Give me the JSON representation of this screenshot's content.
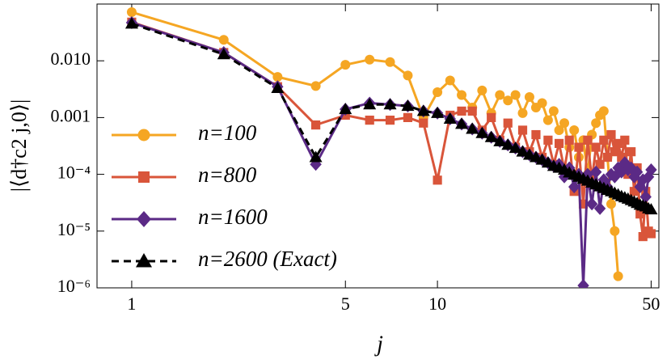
{
  "chart_data": {
    "type": "line",
    "x_label": "j",
    "y_label": "|⟨d†c2 j,0⟩|",
    "xscale": "log",
    "yscale": "log",
    "xlim": [
      0.77,
      53
    ],
    "ylim": [
      1e-06,
      0.1
    ],
    "xticks": [
      1,
      5,
      10,
      50
    ],
    "yticks": [
      {
        "value": 1e-06,
        "label": "10⁻⁶"
      },
      {
        "value": 1e-05,
        "label": "10⁻⁵"
      },
      {
        "value": 0.0001,
        "label": "10⁻⁴"
      },
      0.001,
      {
        "value": 0.01,
        "label": "0.010"
      }
    ],
    "legend": "left",
    "x": [
      1,
      2,
      3,
      4,
      5,
      6,
      7,
      8,
      9,
      10,
      11,
      12,
      13,
      14,
      15,
      16,
      17,
      18,
      19,
      20,
      21,
      22,
      23,
      24,
      25,
      26,
      27,
      28,
      29,
      30,
      31,
      32,
      33,
      34,
      35,
      36,
      37,
      38,
      39,
      40,
      41,
      42,
      43,
      44,
      45,
      46,
      47,
      48,
      49,
      50
    ],
    "series": [
      {
        "name": "n=100",
        "color": "#f5a623",
        "marker": "circle",
        "dash": false,
        "values": [
          0.072,
          0.0234,
          0.0052,
          0.0036,
          0.0085,
          0.0105,
          0.0095,
          0.0055,
          0.001,
          0.0028,
          0.0045,
          0.0025,
          0.0015,
          0.003,
          0.0012,
          0.0025,
          0.002,
          0.0025,
          0.0012,
          0.0023,
          0.0015,
          0.0018,
          0.0009,
          0.0013,
          0.0006,
          0.0008,
          0.0003,
          0.0006,
          0.0002,
          0.0004,
          0.0001,
          0.0005,
          0.0008,
          0.0011,
          0.0013,
          0.0002,
          3e-05,
          1e-05,
          1.6e-06,
          null,
          null,
          null,
          null,
          null,
          null,
          null,
          null,
          null,
          null,
          null
        ]
      },
      {
        "name": "n=800",
        "color": "#d9553a",
        "marker": "square",
        "dash": false,
        "values": [
          0.048,
          0.014,
          0.0035,
          0.00074,
          0.0011,
          0.0009,
          0.0009,
          0.001,
          0.0008,
          7.9e-05,
          0.0011,
          0.0013,
          0.0013,
          0.0006,
          0.001,
          0.0004,
          0.0008,
          0.0003,
          0.0006,
          0.00025,
          0.0005,
          0.0002,
          0.0004,
          0.00015,
          0.00035,
          0.00012,
          0.0004,
          5e-05,
          0.0003,
          3e-05,
          0.0004,
          8e-05,
          0.0003,
          0.00015,
          0.0004,
          0.0002,
          0.0005,
          0.00025,
          0.00035,
          0.0002,
          0.0004,
          0.0001,
          0.00025,
          5e-05,
          0.00013,
          2e-05,
          8e-06,
          5e-05,
          1e-05,
          9e-06
        ]
      },
      {
        "name": "n=1600",
        "color": "#5b2a86",
        "marker": "diamond",
        "dash": false,
        "values": [
          0.047,
          0.014,
          0.0035,
          0.00015,
          0.0014,
          0.0018,
          0.0017,
          0.0016,
          0.0013,
          0.0012,
          0.00095,
          0.00077,
          0.00063,
          0.00053,
          0.00045,
          0.00038,
          0.00033,
          0.00029,
          0.00025,
          0.00022,
          0.0002,
          0.00018,
          0.00016,
          0.00014,
          0.00015,
          9e-05,
          0.00013,
          6e-05,
          0.0001,
          1.1e-06,
          0.0001,
          3e-05,
          0.00011,
          2.5e-05,
          8e-05,
          6e-05,
          0.0001,
          9e-05,
          0.00013,
          0.00011,
          0.00016,
          0.00012,
          0.00013,
          9e-05,
          0.00011,
          6e-05,
          8e-05,
          4e-05,
          9e-05,
          0.00012
        ]
      },
      {
        "name": "n=2600 (Exact)",
        "color": "#000000",
        "marker": "triangle",
        "dash": true,
        "values": [
          0.045,
          0.013,
          0.0033,
          0.0002,
          0.0014,
          0.0017,
          0.0017,
          0.0016,
          0.0013,
          0.0012,
          0.00095,
          0.00077,
          0.00063,
          0.00053,
          0.00045,
          0.00038,
          0.00033,
          0.00029,
          0.00025,
          0.00022,
          0.0002,
          0.00018,
          0.00016,
          0.00014,
          0.00013,
          0.00012,
          0.000107,
          9.8e-05,
          9e-05,
          8.3e-05,
          7.7e-05,
          7.1e-05,
          6.6e-05,
          6.1e-05,
          5.7e-05,
          5.3e-05,
          5e-05,
          4.7e-05,
          4.4e-05,
          4.1e-05,
          3.9e-05,
          3.7e-05,
          3.5e-05,
          3.3e-05,
          3.1e-05,
          2.9e-05,
          2.8e-05,
          2.7e-05,
          2.5e-05,
          2.4e-05
        ]
      }
    ]
  }
}
